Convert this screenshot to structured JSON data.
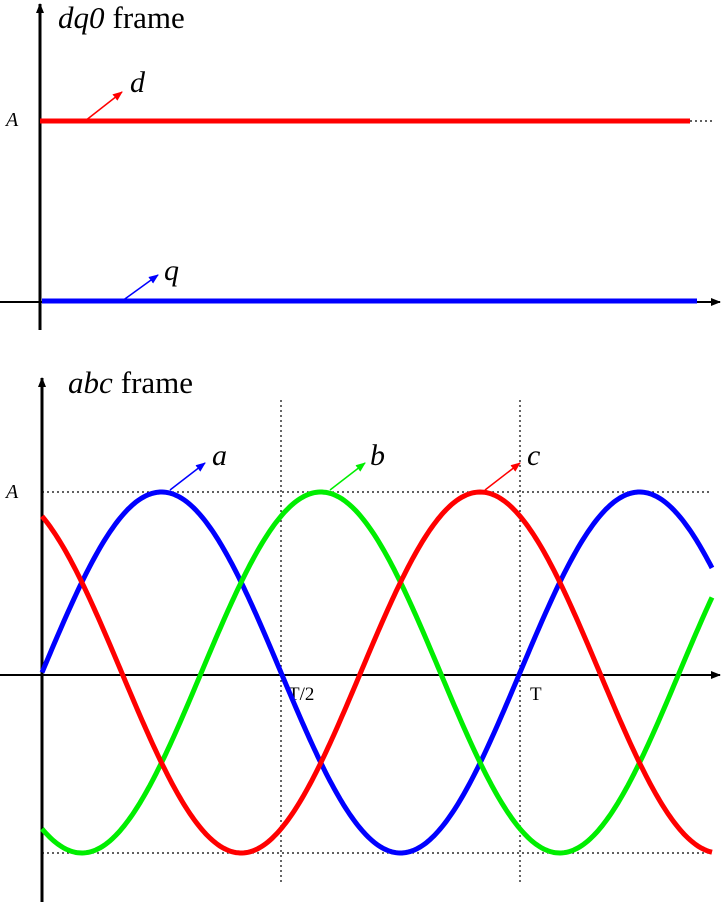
{
  "top": {
    "title": {
      "symbol": "dq0",
      "word": "frame"
    },
    "amplitude_label": "A",
    "curves": [
      "d",
      "q"
    ]
  },
  "bottom": {
    "title": {
      "symbol": "abc",
      "word": "frame"
    },
    "amplitude_label": "A",
    "curves": [
      "a",
      "b",
      "c"
    ],
    "ticks": [
      "T/2",
      "T"
    ]
  }
}
